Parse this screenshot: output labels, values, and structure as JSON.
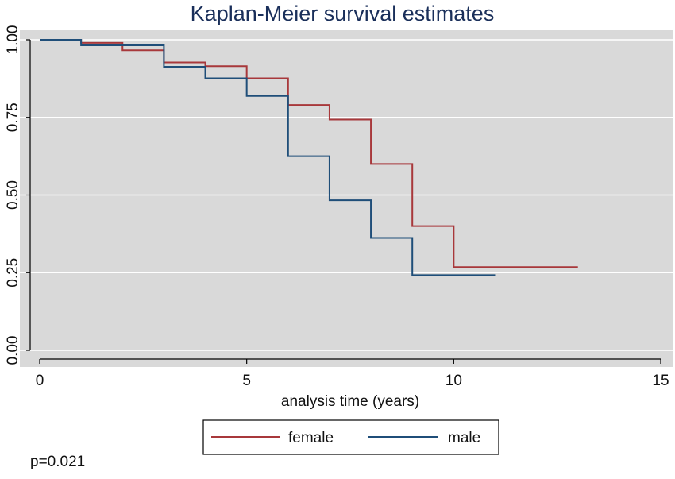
{
  "chart_data": {
    "type": "line",
    "step": true,
    "title": "Kaplan-Meier survival estimates",
    "xlabel": "analysis time (years)",
    "ylabel": "",
    "xlim": [
      0,
      15
    ],
    "ylim": [
      0,
      1
    ],
    "xticks": [
      0,
      5,
      10,
      15
    ],
    "xtick_labels": [
      "0",
      "5",
      "10",
      "15"
    ],
    "yticks": [
      0,
      0.25,
      0.5,
      0.75,
      1
    ],
    "ytick_labels": [
      "0.00",
      "0.25",
      "0.50",
      "0.75",
      "1.00"
    ],
    "grid": true,
    "legend_position": "bottom",
    "series": [
      {
        "name": "female",
        "color": "#a8383b",
        "x": [
          0,
          1,
          2,
          3,
          4,
          5,
          6,
          7,
          8,
          9,
          10,
          13
        ],
        "y": [
          1.0,
          0.99,
          0.966,
          0.927,
          0.915,
          0.876,
          0.79,
          0.743,
          0.6,
          0.4,
          0.268,
          0.268
        ]
      },
      {
        "name": "male",
        "color": "#1f4e79",
        "x": [
          0,
          1,
          3,
          4,
          5,
          6,
          7,
          8,
          9,
          11
        ],
        "y": [
          1.0,
          0.982,
          0.913,
          0.876,
          0.819,
          0.625,
          0.483,
          0.362,
          0.242,
          0.242
        ]
      }
    ]
  },
  "annotation": "p=0.021",
  "colors": {
    "plot_background": "#d9d9d9",
    "gridline": "#ffffff",
    "title": "#1a2f5a"
  }
}
